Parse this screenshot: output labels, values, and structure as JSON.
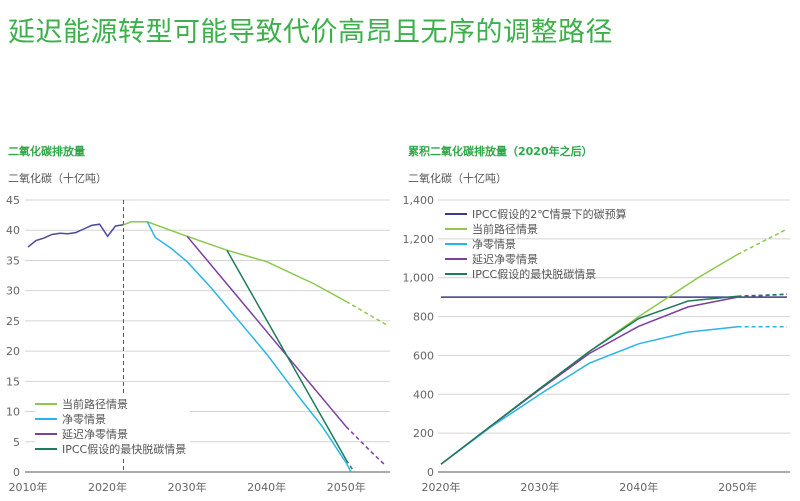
{
  "title": "延迟能源转型可能导致代价高昂且无序的调整路径",
  "chart_data": [
    {
      "type": "line",
      "title": "二氧化碳排放量",
      "ylabel": "二氧化碳（十亿吨）",
      "ylim": [
        0,
        45
      ],
      "yticks": [
        0,
        5,
        10,
        15,
        20,
        25,
        30,
        35,
        40,
        45
      ],
      "xlim": [
        2010,
        2055
      ],
      "xticks": [
        2010,
        2020,
        2030,
        2040,
        2050
      ],
      "xtick_labels": [
        "2010年",
        "2020年",
        "2030年",
        "2040年",
        "2050年"
      ],
      "grid": true,
      "legend_position": "bottom-left",
      "reference_line_x": 2022,
      "series": [
        {
          "color": "#4b4a9c",
          "x": [
            2010,
            2011,
            2012,
            2013,
            2014,
            2015,
            2016,
            2017,
            2018,
            2019,
            2020,
            2021,
            2022
          ],
          "y": [
            37.2,
            38.3,
            38.7,
            39.3,
            39.5,
            39.4,
            39.6,
            40.2,
            40.8,
            41.0,
            39.0,
            40.7,
            40.9
          ]
        },
        {
          "name": "当前路径情景",
          "color": "#8cc84b",
          "x": [
            2022,
            2023,
            2025,
            2030,
            2035,
            2040,
            2046,
            2050,
            2055
          ],
          "y": [
            40.9,
            41.4,
            41.4,
            39.0,
            36.7,
            34.8,
            31.1,
            28.2,
            24.4
          ],
          "dashed_from": 2050
        },
        {
          "name": "净零情景",
          "color": "#29b5e8",
          "x": [
            2025,
            2026,
            2028,
            2030,
            2033,
            2040,
            2044,
            2047,
            2050,
            2050.6
          ],
          "y": [
            41.4,
            38.8,
            37.0,
            34.8,
            30.5,
            19.5,
            12.5,
            7.5,
            1.5,
            0
          ],
          "dashed_from": 2050.6
        },
        {
          "name": "延迟净零情景",
          "color": "#7b3f9e",
          "x": [
            2030,
            2050,
            2053,
            2055
          ],
          "y": [
            39.0,
            7.5,
            3.5,
            1.0
          ],
          "dashed_from": 2050
        },
        {
          "name": "IPCC假设的最快脱碳情景",
          "color": "#1f7a5c",
          "x": [
            2035,
            2050,
            2051
          ],
          "y": [
            36.7,
            2.0,
            0
          ],
          "dashed_from": 2050
        }
      ]
    },
    {
      "type": "line",
      "title": "累积二氧化碳排放量（2020年之后）",
      "ylabel": "二氧化碳（十亿吨）",
      "ylim": [
        0,
        1400
      ],
      "yticks": [
        0,
        200,
        400,
        600,
        800,
        1000,
        1200,
        1400
      ],
      "ytick_labels": [
        "0",
        "200",
        "400",
        "600",
        "800",
        "1,000",
        "1,200",
        "1,400"
      ],
      "xlim": [
        2020,
        2055
      ],
      "xticks": [
        2020,
        2030,
        2040,
        2050
      ],
      "xtick_labels": [
        "2020年",
        "2030年",
        "2040年",
        "2050年"
      ],
      "grid": true,
      "legend_position": "top-left",
      "series": [
        {
          "name": "IPCC假设的2℃情景下的碳预算",
          "color": "#3b3a8c",
          "x": [
            2020,
            2055
          ],
          "y": [
            900,
            900
          ]
        },
        {
          "name": "当前路径情景",
          "color": "#8cc84b",
          "x": [
            2020,
            2025,
            2030,
            2035,
            2040,
            2043,
            2046,
            2050,
            2055
          ],
          "y": [
            40,
            235,
            430,
            620,
            800,
            900,
            1000,
            1120,
            1250
          ],
          "dashed_from": 2050
        },
        {
          "name": "净零情景",
          "color": "#29b5e8",
          "x": [
            2020,
            2025,
            2030,
            2035,
            2040,
            2045,
            2050,
            2055
          ],
          "y": [
            40,
            230,
            400,
            560,
            660,
            720,
            748,
            748
          ],
          "dashed_from": 2050
        },
        {
          "name": "延迟净零情景",
          "color": "#7b3f9e",
          "x": [
            2020,
            2025,
            2030,
            2035,
            2040,
            2045,
            2050,
            2055
          ],
          "y": [
            40,
            235,
            425,
            610,
            750,
            850,
            900,
            915
          ],
          "dashed_from": 2050
        },
        {
          "name": "IPCC假设的最快脱碳情景",
          "color": "#1f7a5c",
          "x": [
            2020,
            2025,
            2030,
            2035,
            2040,
            2045,
            2050,
            2055
          ],
          "y": [
            40,
            235,
            430,
            620,
            790,
            880,
            905,
            915
          ],
          "dashed_from": 2050
        }
      ]
    }
  ]
}
